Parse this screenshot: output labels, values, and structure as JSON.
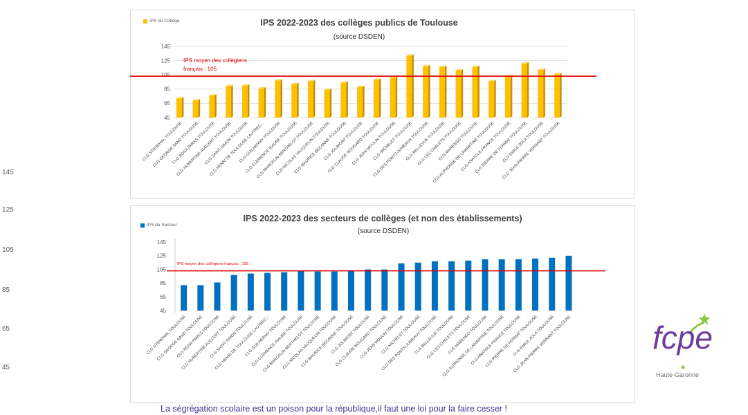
{
  "slide": {
    "side_axis": {
      "ticks": [
        "145",
        "125",
        "105",
        "85",
        "65",
        "45"
      ]
    },
    "footer_text": "La ségrégation scolaire est un poison pour la république,il faut une loi pour la faire cesser !",
    "footer_color": "#3d3391"
  },
  "logo": {
    "wordmark": "fcpe",
    "subtitle": "Haute-Garonne",
    "icon": "raised-arms-figure-icon",
    "purple": "#6f3c9c",
    "green": "#8dc63f"
  },
  "chart_data": [
    {
      "type": "bar",
      "title": "IPS 2022-2023 des collèges publics de Toulouse",
      "subtitle": "(source DSDEN)",
      "categories": [
        "CLG STENDHAL TOULOUSE",
        "CLG GEORGE SAND TOULOUSE",
        "CLG ROSA PARKS TOULOUSE",
        "CLG HUBERTINE AUCLERT TOULOUSE",
        "CLG SAINT-SIMON TOULOUSE",
        "CLG HENRI DE TOULOUSE-LAUTREC...",
        "CLG GUILHERMY TOULOUSE",
        "CLG CLEMENCE ISAURE TOULOUSE",
        "CLG MARCELIN BERTHELOT TOULOUSE",
        "CLG NICOLAS VAUQUELIN TOULOUSE",
        "CLG MAURICE BECANNE TOULOUSE",
        "CLG JOLIMONT TOULOUSE",
        "CLG CLAUDE NOUGARO TOULOUSE",
        "CLG JEAN MOULIN TOULOUSE",
        "CLG MICHELET TOULOUSE",
        "CLG DES PONTS-JUMEAUX TOULOUSE",
        "CLG BELLEVUE TOULOUSE",
        "CLG LES CHALETS TOULOUSE",
        "CLG MARENGO TOULOUSE",
        "CLG ALPHONSE DE LAMARTINE TOULOUSE",
        "CLG ANATOLE FRANCE TOULOUSE",
        "CLG PIERRE DE FERMAT TOULOUSE",
        "CLG EMILE ZOLA TOULOUSE",
        "CLG JEAN-PIERRE VERNANT TOULOUSE"
      ],
      "series": [
        {
          "name": "IPS du Collège",
          "color": "#ffc000",
          "values": [
            72,
            69,
            76,
            89,
            90,
            86,
            97,
            92,
            96,
            84,
            94,
            88,
            98,
            101,
            132,
            117,
            116,
            111,
            116,
            96,
            103,
            121,
            112,
            106
          ]
        }
      ],
      "ylim": [
        45,
        145
      ],
      "yticks": [
        45,
        65,
        85,
        105,
        125,
        145
      ],
      "grid": true,
      "legend": "top-left",
      "bar_style": "3d",
      "reference_line": {
        "value": 105,
        "color": "#e00000",
        "label_lines": [
          "IPS moyen des collégiens",
          "français : 105"
        ]
      }
    },
    {
      "type": "bar",
      "title": "IPS 2022-2023 des secteurs de collèges (et non des établissements)",
      "subtitle": "(source DSDEN)",
      "categories": [
        "CLG STENDHAL TOULOUSE",
        "CLG GEORGE SAND TOULOUSE",
        "CLG ROSA PARKS TOULOUSE",
        "CLG HUBERTINE AUCLERT TOULOUSE",
        "CLG SAINT-SIMON TOULOUSE",
        "CLG HENRI DE TOULOUSE-LAUTREC...",
        "CLG GUILHERMY TOULOUSE",
        "CLG CLEMENCE ISAURE TOULOUSE",
        "CLG MARCELIN BERTHELOT TOULOUSE",
        "CLG NICOLAS VAUQUELIN TOULOUSE",
        "CLG MAURICE BECANNE TOULOUSE",
        "CLG JOLIMONT TOULOUSE",
        "CLG CLAUDE NOUGARO TOULOUSE",
        "CLG JEAN MOULIN TOULOUSE",
        "CLG MICHELET TOULOUSE",
        "CLG DES PONTS-JUMEAUX TOULOUSE",
        "CLG BELLEVUE TOULOUSE",
        "CLG LES CHALETS TOULOUSE",
        "CLG MARENGO TOULOUSE",
        "CLG ALPHONSE DE LAMARTINE TOULOUSE",
        "CLG ANATOLE FRANCE TOULOUSE",
        "CLG PIERRE DE FERMAT TOULOUSE",
        "CLG EMILE ZOLA TOULOUSE",
        "CLG JEAN-PIERRE VERNANT TOULOUSE"
      ],
      "series": [
        {
          "name": "IPS du Secteur",
          "color": "#0070c0",
          "values": [
            82,
            82,
            86,
            97,
            99,
            100,
            101,
            103,
            102,
            102,
            104,
            105,
            105,
            114,
            115,
            117,
            117,
            118,
            120,
            120,
            120,
            121,
            122,
            125
          ]
        }
      ],
      "ylim": [
        45,
        145
      ],
      "yticks": [
        45,
        65,
        85,
        105,
        125,
        145
      ],
      "grid": false,
      "legend": "top-left",
      "bar_style": "flat",
      "reference_line": {
        "value": 105,
        "color": "#e00000",
        "label_lines": [
          "IPS moyen des collégiens français : 105"
        ]
      }
    }
  ]
}
